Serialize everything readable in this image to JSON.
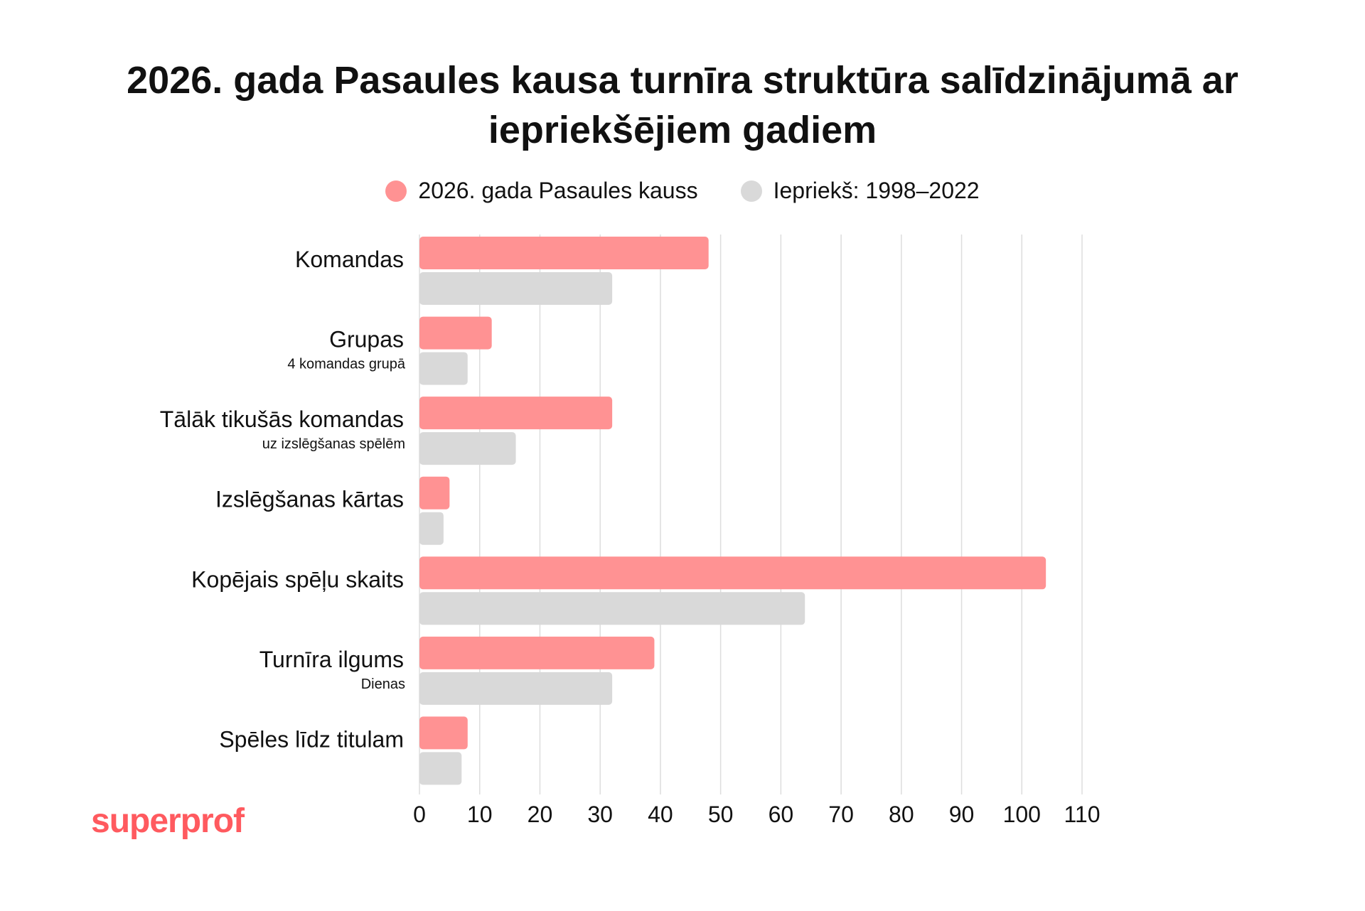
{
  "title_line1": "2026. gada Pasaules kausa turnīra struktūra salīdzinājumā ar",
  "title_line2": "iepriekšējiem gadiem",
  "logo": "superprof",
  "colors": {
    "series_2026": "#ff9293",
    "series_prev": "#d9d9d9",
    "logo": "#ff5a5f",
    "grid": "#dddddd"
  },
  "chart_data": {
    "type": "bar",
    "orientation": "horizontal",
    "categories": [
      "Komandas",
      "Grupas",
      "Tālāk tikušās komandas",
      "Izslēgšanas kārtas",
      "Kopējais spēļu skaits",
      "Turnīra ilgums",
      "Spēles līdz titulam"
    ],
    "category_sublabels": [
      "",
      "4 komandas grupā",
      "uz izslēgšanas spēlēm",
      "",
      "",
      "Dienas",
      ""
    ],
    "series": [
      {
        "name": "2026. gada Pasaules kauss",
        "values": [
          48,
          12,
          32,
          5,
          104,
          39,
          8
        ]
      },
      {
        "name": "Iepriekš: 1998–2022",
        "values": [
          32,
          8,
          16,
          4,
          64,
          32,
          7
        ]
      }
    ],
    "xlim": [
      0,
      110
    ],
    "xticks": [
      0,
      10,
      20,
      30,
      40,
      50,
      60,
      70,
      80,
      90,
      100,
      110
    ],
    "grid": true,
    "legend_position": "top"
  }
}
